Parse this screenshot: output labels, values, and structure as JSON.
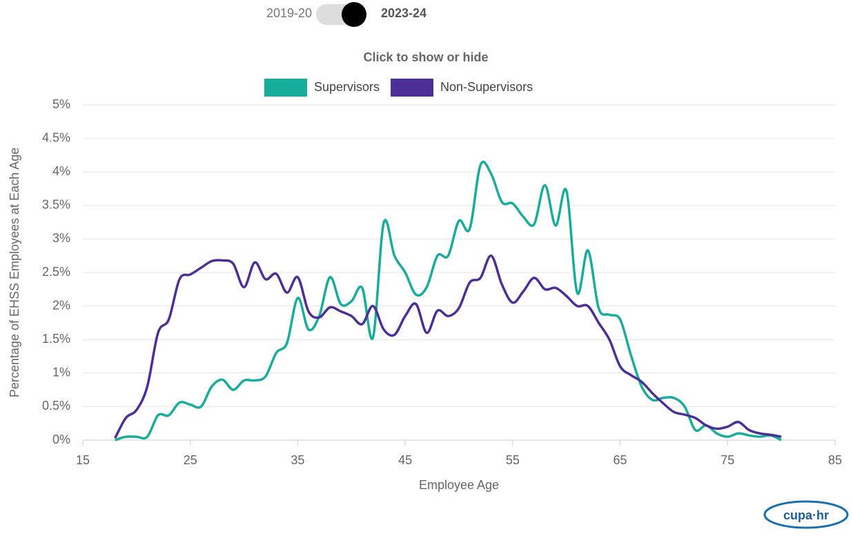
{
  "chart_data": {
    "type": "line",
    "toggle_options": [
      "2019-20",
      "2023-24"
    ],
    "legend_title": "Click to show or hide",
    "xlabel": "Employee Age",
    "ylabel": "Percentage of EHSS Employees at Each Age",
    "logo": "cupa·hr",
    "xlim": [
      15,
      85
    ],
    "xticks": [
      15,
      25,
      35,
      45,
      55,
      65,
      75,
      85
    ],
    "ylim": [
      0,
      5
    ],
    "yticks": [
      {
        "value": 0,
        "label": "0%"
      },
      {
        "value": 0.5,
        "label": "0.5%"
      },
      {
        "value": 1,
        "label": "1%"
      },
      {
        "value": 1.5,
        "label": "1.5%"
      },
      {
        "value": 2,
        "label": "2%"
      },
      {
        "value": 2.5,
        "label": "2.5%"
      },
      {
        "value": 3,
        "label": "3%"
      },
      {
        "value": 3.5,
        "label": "3.5%"
      },
      {
        "value": 4,
        "label": "4%"
      },
      {
        "value": 4.5,
        "label": "4.5%"
      },
      {
        "value": 5,
        "label": "5%"
      }
    ],
    "grid": true,
    "x": [
      18,
      19,
      20,
      21,
      22,
      23,
      24,
      25,
      26,
      27,
      28,
      29,
      30,
      31,
      32,
      33,
      34,
      35,
      36,
      37,
      38,
      39,
      40,
      41,
      42,
      43,
      44,
      45,
      46,
      47,
      48,
      49,
      50,
      51,
      52,
      53,
      54,
      55,
      56,
      57,
      58,
      59,
      60,
      61,
      62,
      63,
      64,
      65,
      66,
      67,
      68,
      69,
      70,
      71,
      72,
      73,
      74,
      75,
      76,
      77,
      78,
      79,
      80
    ],
    "series": [
      {
        "name": "Supervisors",
        "color": "#17ad9c",
        "values": [
          0,
          0.05,
          0.05,
          0.05,
          0.37,
          0.37,
          0.56,
          0.53,
          0.5,
          0.8,
          0.9,
          0.75,
          0.89,
          0.89,
          0.95,
          1.3,
          1.45,
          2.12,
          1.65,
          1.85,
          2.43,
          2.03,
          2.07,
          2.27,
          1.53,
          3.24,
          2.75,
          2.5,
          2.17,
          2.28,
          2.75,
          2.75,
          3.27,
          3.15,
          4.1,
          3.97,
          3.55,
          3.53,
          3.33,
          3.22,
          3.8,
          3.2,
          3.72,
          2.2,
          2.83,
          1.97,
          1.87,
          1.8,
          1.27,
          0.8,
          0.6,
          0.63,
          0.63,
          0.5,
          0.15,
          0.22,
          0.1,
          0.05,
          0.1,
          0.07,
          0.05,
          0.07,
          0
        ]
      },
      {
        "name": "Non-Supervisors",
        "color": "#4b2e96",
        "values": [
          0.03,
          0.33,
          0.45,
          0.8,
          1.6,
          1.8,
          2.4,
          2.47,
          2.57,
          2.67,
          2.68,
          2.63,
          2.28,
          2.65,
          2.4,
          2.48,
          2.2,
          2.43,
          1.92,
          1.83,
          1.98,
          1.92,
          1.85,
          1.73,
          2.0,
          1.65,
          1.57,
          1.85,
          2.03,
          1.6,
          1.93,
          1.85,
          1.97,
          2.35,
          2.42,
          2.75,
          2.32,
          2.05,
          2.22,
          2.42,
          2.25,
          2.27,
          2.15,
          2.0,
          2.0,
          1.75,
          1.5,
          1.1,
          0.97,
          0.87,
          0.7,
          0.55,
          0.42,
          0.38,
          0.33,
          0.22,
          0.17,
          0.2,
          0.27,
          0.15,
          0.1,
          0.08,
          0.05
        ]
      }
    ]
  }
}
